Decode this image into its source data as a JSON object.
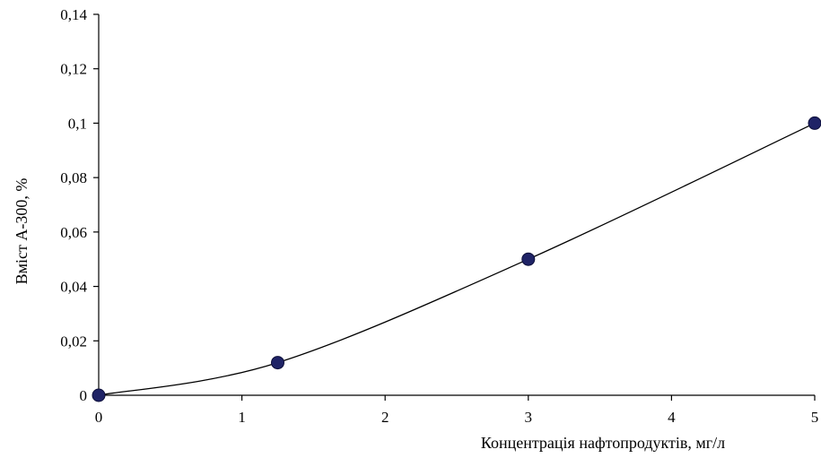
{
  "chart_data": {
    "type": "scatter",
    "title": "",
    "xlabel": "Концентрація нафтопродуктів, мг/л",
    "ylabel": "Вміст А-300, %",
    "xlim": [
      0,
      5
    ],
    "ylim": [
      0,
      0.14
    ],
    "x_ticks": [
      "0",
      "1",
      "2",
      "3",
      "4",
      "5"
    ],
    "y_ticks": [
      "0",
      "0,02",
      "0,04",
      "0,06",
      "0,08",
      "0,1",
      "0,12",
      "0,14"
    ],
    "grid": false,
    "legend": "none",
    "smoothed_line": true,
    "series": [
      {
        "x": [
          0,
          1.25,
          3,
          5
        ],
        "y": [
          0,
          0.012,
          0.05,
          0.1
        ]
      }
    ],
    "colors": {
      "marker_fill": "#1f2366",
      "marker_stroke": "#0d0f3a",
      "line": "#000000",
      "axis": "#000000"
    }
  }
}
